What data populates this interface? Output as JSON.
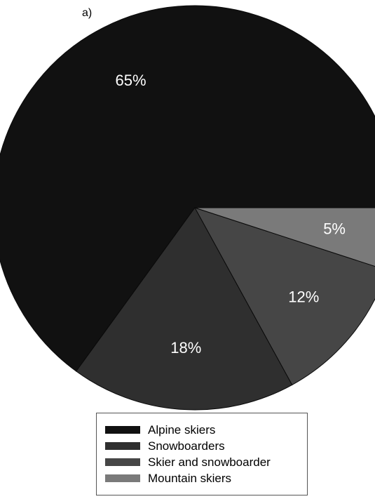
{
  "panel_label": "a)",
  "chart_data": {
    "type": "pie",
    "title": "",
    "legend_position": "bottom",
    "start": "3 o'clock, counter-clockwise",
    "slices": [
      {
        "name": "Alpine skiers",
        "value": 65,
        "label": "65%",
        "color": "#111111"
      },
      {
        "name": "Snowboarders",
        "value": 18,
        "label": "18%",
        "color": "#2f2f2f"
      },
      {
        "name": "Skier and snowboarder",
        "value": 12,
        "label": "12%",
        "color": "#464646"
      },
      {
        "name": "Mountain skiers",
        "value": 5,
        "label": "5%",
        "color": "#7a7a7a"
      }
    ]
  }
}
